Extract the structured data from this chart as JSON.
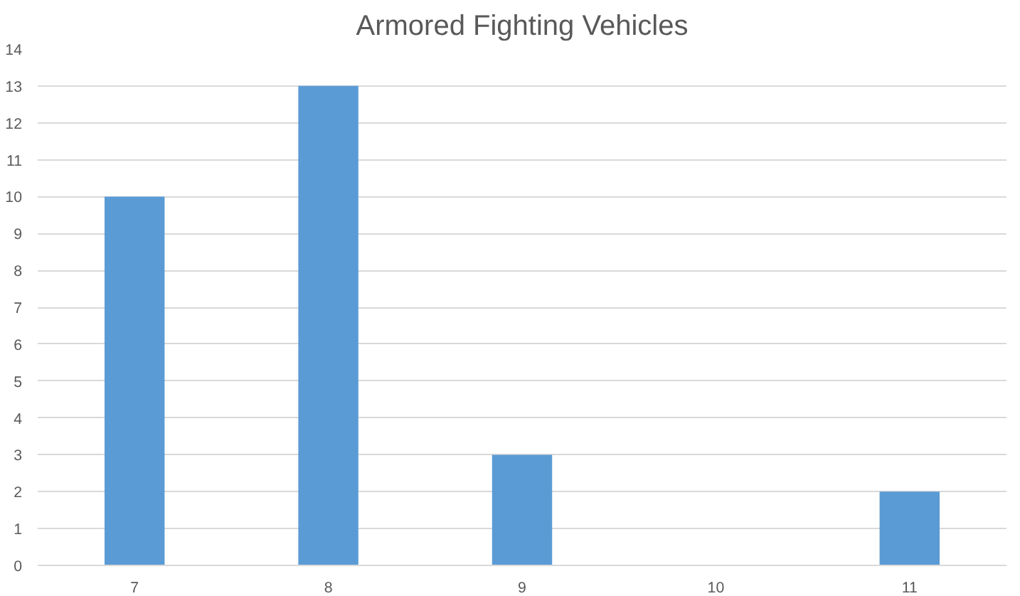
{
  "chart_data": {
    "type": "bar",
    "title": "Armored Fighting Vehicles",
    "categories": [
      "7",
      "8",
      "9",
      "10",
      "11"
    ],
    "values": [
      10,
      13,
      3,
      0,
      2
    ],
    "color": "#5b9bd5",
    "ylim": [
      0,
      14
    ],
    "yticks": [
      0,
      1,
      2,
      3,
      4,
      5,
      6,
      7,
      8,
      9,
      10,
      11,
      12,
      13,
      14
    ],
    "grid": "y"
  }
}
